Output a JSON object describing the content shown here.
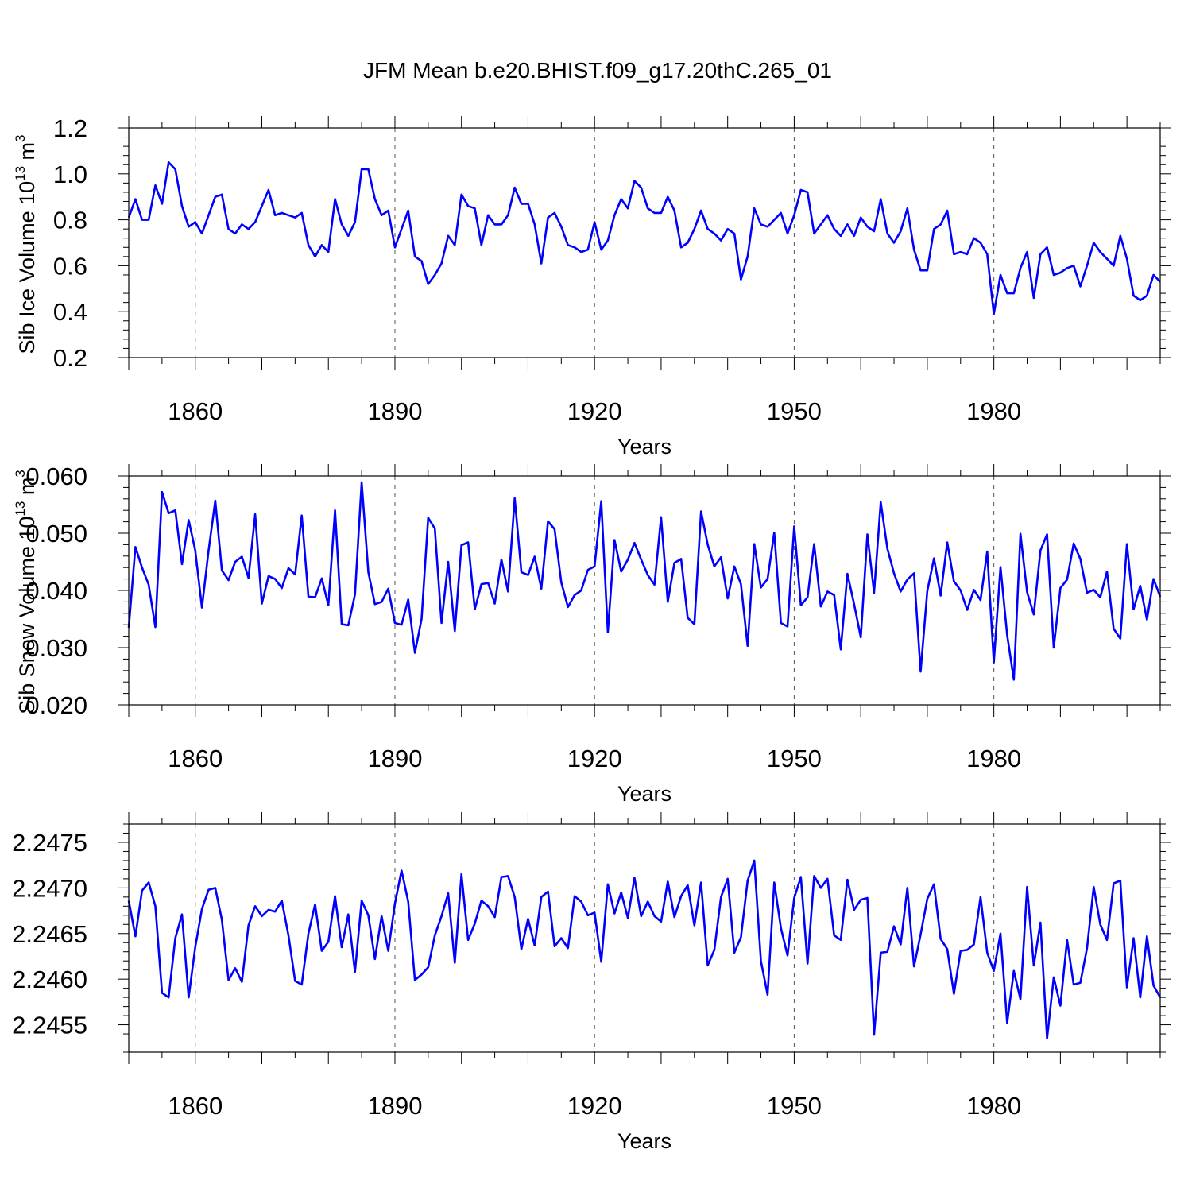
{
  "title": "JFM Mean b.e20.BHIST.f09_g17.20thC.265_01",
  "colors": {
    "line": "#0000ff",
    "axes": "#000000",
    "grid": "#555555"
  },
  "chart_data": [
    {
      "type": "line",
      "ylabel_main": "Sib Ice Volume 10",
      "ylabel_exp": "13",
      "ylabel_unit": " m",
      "ylabel_unit_exp": "3",
      "xlabel": "Years",
      "xlim": [
        1850,
        2005
      ],
      "ylim": [
        0.2,
        1.2
      ],
      "xticks": [
        1860,
        1890,
        1920,
        1950,
        1980
      ],
      "xtick_labels": [
        "1860",
        "1890",
        "1920",
        "1950",
        "1980"
      ],
      "yticks": [
        0.2,
        0.4,
        0.6,
        0.8,
        1.0,
        1.2
      ],
      "ytick_labels": [
        "0.2",
        "0.4",
        "0.6",
        "0.8",
        "1.0",
        "1.2"
      ],
      "grid": "vertical dashed at labeled years",
      "start_year": 1850,
      "values": [
        0.81,
        0.89,
        0.8,
        0.8,
        0.95,
        0.87,
        1.05,
        1.02,
        0.86,
        0.77,
        0.79,
        0.74,
        0.82,
        0.9,
        0.91,
        0.76,
        0.74,
        0.78,
        0.76,
        0.79,
        0.86,
        0.93,
        0.82,
        0.83,
        0.82,
        0.81,
        0.83,
        0.69,
        0.64,
        0.69,
        0.66,
        0.89,
        0.78,
        0.73,
        0.79,
        1.02,
        1.02,
        0.89,
        0.82,
        0.84,
        0.68,
        0.76,
        0.84,
        0.64,
        0.62,
        0.52,
        0.56,
        0.61,
        0.73,
        0.69,
        0.91,
        0.86,
        0.85,
        0.69,
        0.82,
        0.78,
        0.78,
        0.82,
        0.94,
        0.87,
        0.87,
        0.78,
        0.61,
        0.81,
        0.83,
        0.77,
        0.69,
        0.68,
        0.66,
        0.67,
        0.79,
        0.67,
        0.71,
        0.82,
        0.89,
        0.85,
        0.97,
        0.94,
        0.85,
        0.83,
        0.83,
        0.9,
        0.84,
        0.68,
        0.7,
        0.76,
        0.84,
        0.76,
        0.74,
        0.71,
        0.76,
        0.74,
        0.54,
        0.64,
        0.85,
        0.78,
        0.77,
        0.8,
        0.83,
        0.74,
        0.82,
        0.93,
        0.92,
        0.74,
        0.78,
        0.82,
        0.76,
        0.73,
        0.78,
        0.73,
        0.81,
        0.77,
        0.75,
        0.89,
        0.74,
        0.7,
        0.75,
        0.85,
        0.67,
        0.58,
        0.58,
        0.76,
        0.78,
        0.84,
        0.65,
        0.66,
        0.65,
        0.72,
        0.7,
        0.65,
        0.39,
        0.56,
        0.48,
        0.48,
        0.59,
        0.66,
        0.46,
        0.65,
        0.68,
        0.56,
        0.57,
        0.59,
        0.6,
        0.51,
        0.6,
        0.7,
        0.66,
        0.63,
        0.6,
        0.73,
        0.63,
        0.47,
        0.45,
        0.47,
        0.56,
        0.53
      ]
    },
    {
      "type": "line",
      "ylabel_main": "Sib Snow Volume 10",
      "ylabel_exp": "13",
      "ylabel_unit": " m",
      "ylabel_unit_exp": "3",
      "xlabel": "Years",
      "xlim": [
        1850,
        2005
      ],
      "ylim": [
        0.02,
        0.06
      ],
      "xticks": [
        1860,
        1890,
        1920,
        1950,
        1980
      ],
      "xtick_labels": [
        "1860",
        "1890",
        "1920",
        "1950",
        "1980"
      ],
      "yticks": [
        0.02,
        0.03,
        0.04,
        0.05,
        0.06
      ],
      "ytick_labels": [
        "0.020",
        "0.030",
        "0.040",
        "0.050",
        "0.060"
      ],
      "grid": "vertical dashed at labeled years",
      "start_year": 1850,
      "values": [
        0.0335,
        0.0476,
        0.044,
        0.041,
        0.0336,
        0.0572,
        0.0535,
        0.054,
        0.0446,
        0.0523,
        0.047,
        0.037,
        0.047,
        0.0557,
        0.0435,
        0.0418,
        0.045,
        0.0459,
        0.0422,
        0.0533,
        0.0377,
        0.0425,
        0.042,
        0.0404,
        0.0439,
        0.0428,
        0.0531,
        0.0389,
        0.0388,
        0.0421,
        0.0374,
        0.054,
        0.0341,
        0.0339,
        0.0393,
        0.0589,
        0.0432,
        0.0376,
        0.038,
        0.0403,
        0.0343,
        0.034,
        0.0384,
        0.0291,
        0.035,
        0.0527,
        0.0508,
        0.0343,
        0.045,
        0.0329,
        0.0479,
        0.0484,
        0.0367,
        0.0411,
        0.0413,
        0.0377,
        0.0454,
        0.0398,
        0.0561,
        0.0432,
        0.0427,
        0.0459,
        0.0403,
        0.0521,
        0.0507,
        0.0414,
        0.0371,
        0.0392,
        0.04,
        0.0436,
        0.0442,
        0.0556,
        0.0327,
        0.0488,
        0.0433,
        0.0454,
        0.0483,
        0.0454,
        0.0427,
        0.041,
        0.0528,
        0.038,
        0.0448,
        0.0455,
        0.0352,
        0.0341,
        0.0538,
        0.048,
        0.0442,
        0.0458,
        0.0386,
        0.0442,
        0.0411,
        0.0303,
        0.0481,
        0.0405,
        0.042,
        0.0501,
        0.0343,
        0.0337,
        0.0512,
        0.0374,
        0.0388,
        0.0481,
        0.0372,
        0.0398,
        0.0392,
        0.0297,
        0.0429,
        0.0376,
        0.0318,
        0.0498,
        0.0396,
        0.0554,
        0.0473,
        0.043,
        0.0398,
        0.0419,
        0.043,
        0.0258,
        0.0399,
        0.0456,
        0.0391,
        0.0484,
        0.0416,
        0.04,
        0.0366,
        0.0401,
        0.0383,
        0.0468,
        0.0274,
        0.0441,
        0.0322,
        0.0244,
        0.0499,
        0.0397,
        0.0358,
        0.047,
        0.0498,
        0.03,
        0.0404,
        0.0419,
        0.0482,
        0.0455,
        0.0396,
        0.0401,
        0.0388,
        0.0433,
        0.0333,
        0.0316,
        0.0481,
        0.0367,
        0.0408,
        0.0349,
        0.042,
        0.0389
      ]
    },
    {
      "type": "line",
      "ylabel_main": "",
      "ylabel_exp": "",
      "ylabel_unit": "",
      "ylabel_unit_exp": "",
      "xlabel": "Years",
      "xlim": [
        1850,
        2005
      ],
      "ylim": [
        2.2452,
        2.2477
      ],
      "xticks": [
        1860,
        1890,
        1920,
        1950,
        1980
      ],
      "xtick_labels": [
        "1860",
        "1890",
        "1920",
        "1950",
        "1980"
      ],
      "yticks": [
        2.2455,
        2.246,
        2.2465,
        2.247,
        2.2475
      ],
      "ytick_labels": [
        "2.2455",
        "2.2460",
        "2.2465",
        "2.2470",
        "2.2475"
      ],
      "grid": "vertical dashed at labeled years",
      "start_year": 1850,
      "values": [
        2.24686,
        2.24647,
        2.24697,
        2.24706,
        2.2468,
        2.24585,
        2.2458,
        2.24645,
        2.24671,
        2.2458,
        2.24635,
        2.24677,
        2.24698,
        2.247,
        2.24665,
        2.24599,
        2.24612,
        2.24597,
        2.24659,
        2.2468,
        2.24669,
        2.24676,
        2.24674,
        2.24686,
        2.24648,
        2.24598,
        2.24594,
        2.2465,
        2.24682,
        2.24631,
        2.24641,
        2.24691,
        2.24635,
        2.24671,
        2.24608,
        2.24686,
        2.2467,
        2.24622,
        2.24669,
        2.24631,
        2.24683,
        2.24719,
        2.24685,
        2.24599,
        2.24605,
        2.24613,
        2.24648,
        2.24669,
        2.24694,
        2.24618,
        2.24715,
        2.24643,
        2.24661,
        2.24686,
        2.2468,
        2.24668,
        2.24712,
        2.24713,
        2.2469,
        2.24633,
        2.24666,
        2.24637,
        2.2469,
        2.24696,
        2.24636,
        2.24645,
        2.24634,
        2.24691,
        2.24685,
        2.2467,
        2.24673,
        2.24619,
        2.24704,
        2.24672,
        2.24695,
        2.24667,
        2.24711,
        2.24669,
        2.24685,
        2.24669,
        2.24663,
        2.24707,
        2.24668,
        2.24691,
        2.24703,
        2.24659,
        2.24706,
        2.24615,
        2.24632,
        2.2469,
        2.2471,
        2.24629,
        2.24646,
        2.24708,
        2.2473,
        2.2462,
        2.24583,
        2.24706,
        2.24656,
        2.24626,
        2.24689,
        2.24712,
        2.24617,
        2.24713,
        2.247,
        2.2471,
        2.24648,
        2.24643,
        2.24709,
        2.24676,
        2.24687,
        2.24689,
        2.24539,
        2.24629,
        2.2463,
        2.24658,
        2.24638,
        2.247,
        2.24614,
        2.24649,
        2.24688,
        2.24704,
        2.24644,
        2.24633,
        2.24584,
        2.24631,
        2.24632,
        2.24638,
        2.2469,
        2.24629,
        2.24609,
        2.2465,
        2.24552,
        2.24609,
        2.24578,
        2.24701,
        2.24615,
        2.24662,
        2.24535,
        2.24602,
        2.24571,
        2.24643,
        2.24594,
        2.24596,
        2.24634,
        2.24701,
        2.2466,
        2.24643,
        2.24705,
        2.24708,
        2.24591,
        2.24645,
        2.2458,
        2.24647,
        2.24593,
        2.2458
      ]
    }
  ]
}
